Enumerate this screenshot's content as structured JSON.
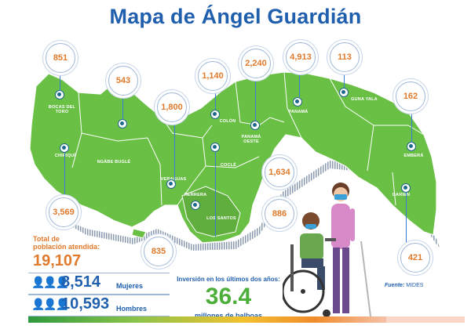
{
  "title": "Mapa de Ángel Guardián",
  "regions": [
    {
      "id": "bocas",
      "label": "BOCAS DEL TORO",
      "value": "851"
    },
    {
      "id": "chiriqui",
      "label": "CHIRIQUÍ",
      "value": "3,569"
    },
    {
      "id": "ngabe",
      "label": "NGÄBE BUGLÉ",
      "value": "543"
    },
    {
      "id": "veraguas",
      "label": "VERAGUAS",
      "value": "1,800"
    },
    {
      "id": "colon",
      "label": "COLÓN",
      "value": "1,140"
    },
    {
      "id": "cocle",
      "label": "COCLÉ",
      "value": "835"
    },
    {
      "id": "herrera",
      "label": "HERRERA",
      "value": ""
    },
    {
      "id": "lossantos",
      "label": "LOS SANTOS",
      "value": "886"
    },
    {
      "id": "panamaoeste",
      "label": "PANAMÁ OESTE",
      "value": "2,240"
    },
    {
      "id": "panama",
      "label": "PANAMÁ",
      "value": "4,913"
    },
    {
      "id": "gunayala",
      "label": "GUNA YALA",
      "value": "113"
    },
    {
      "id": "embera",
      "label": "EMBERÁ",
      "value": "162"
    },
    {
      "id": "darien",
      "label": "DARIÉN",
      "value": "421"
    },
    {
      "id": "embera2",
      "label": "EMBERÁ",
      "value": ""
    },
    {
      "id": "sanmiguelito",
      "label": "",
      "value": "1,634"
    }
  ],
  "stats": {
    "total_label_1": "Total de",
    "total_label_2": "población atendida:",
    "total_value": "19,107",
    "mujeres_value": "8,514",
    "mujeres_label": "Mujeres",
    "hombres_value": "10,593",
    "hombres_label": "Hombres",
    "people_icons": "👤👤👤"
  },
  "investment": {
    "label": "Inversión en los últimos dos años:",
    "value": "36.4",
    "unit": "millones de balboas"
  },
  "source": {
    "label": "Fuente:",
    "value": "MIDES"
  },
  "colors": {
    "land": "#6abf45",
    "land_dark": "#4e9e31",
    "title": "#1f5fae",
    "accent": "#e07a2c"
  }
}
